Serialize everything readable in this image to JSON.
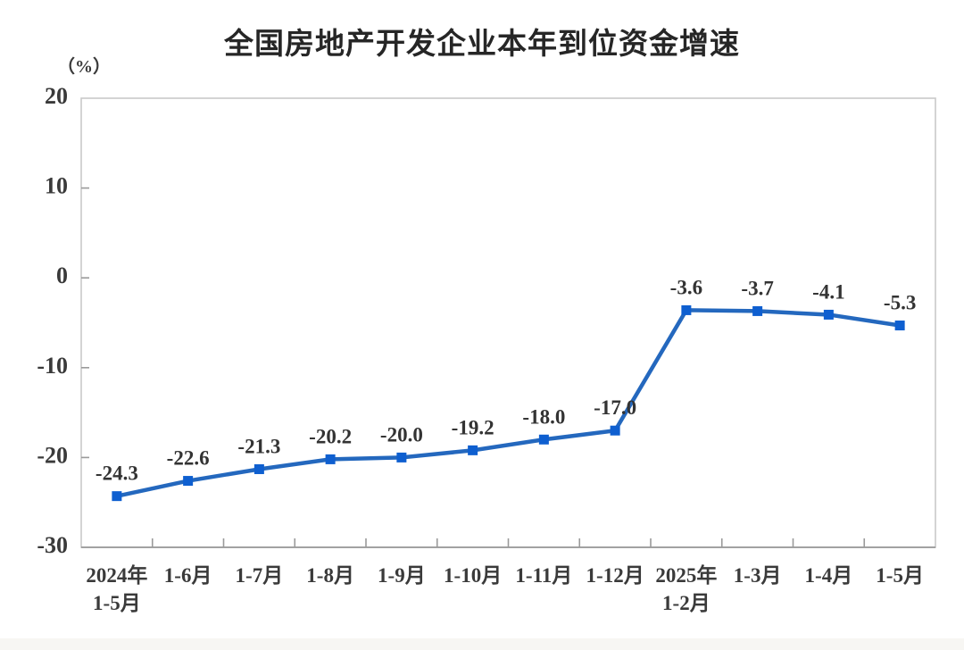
{
  "chart_data": {
    "type": "line",
    "title": "全国房地产开发企业本年到位资金增速",
    "unit_label": "（%）",
    "categories": [
      [
        "2024年",
        "1-5月"
      ],
      [
        "1-6月"
      ],
      [
        "1-7月"
      ],
      [
        "1-8月"
      ],
      [
        "1-9月"
      ],
      [
        "1-10月"
      ],
      [
        "1-11月"
      ],
      [
        "1-12月"
      ],
      [
        "2025年",
        "1-2月"
      ],
      [
        "1-3月"
      ],
      [
        "1-4月"
      ],
      [
        "1-5月"
      ]
    ],
    "values": [
      -24.3,
      -22.6,
      -21.3,
      -20.2,
      -20.0,
      -19.2,
      -18.0,
      -17.0,
      -3.6,
      -3.7,
      -4.1,
      -5.3
    ],
    "data_labels": [
      "-24.3",
      "-22.6",
      "-21.3",
      "-20.2",
      "-20.0",
      "-19.2",
      "-18.0",
      "-17.0",
      "-3.6",
      "-3.7",
      "-4.1",
      "-5.3"
    ],
    "ylabel": "（%）",
    "xlabel": "",
    "ylim": [
      -30,
      20
    ],
    "y_ticks": [
      20,
      10,
      0,
      -10,
      -20,
      -30
    ],
    "inner_y_ticks": [
      10,
      0,
      -10,
      -20
    ],
    "grid": false,
    "legend": "none",
    "colors": {
      "line": "#2468be",
      "marker": "#0e5fd0",
      "plot_border": "#c9c9c9",
      "axis_bottom": "#9a9a9a",
      "tick": "#9a9a9a",
      "text": "#3a3a3a",
      "title": "#262626",
      "footer_strip": "#f7f6f3",
      "background": "#ffffff"
    }
  }
}
